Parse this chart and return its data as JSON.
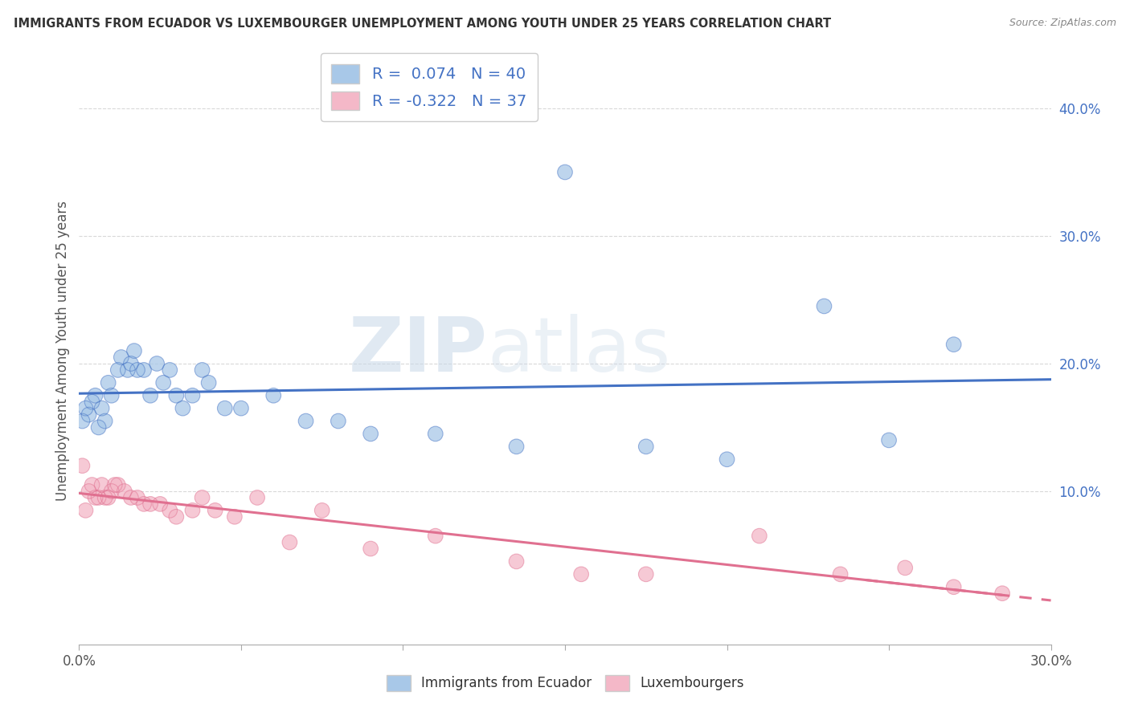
{
  "title": "IMMIGRANTS FROM ECUADOR VS LUXEMBOURGER UNEMPLOYMENT AMONG YOUTH UNDER 25 YEARS CORRELATION CHART",
  "source": "Source: ZipAtlas.com",
  "ylabel": "Unemployment Among Youth under 25 years",
  "legend_labels": [
    "Immigrants from Ecuador",
    "Luxembourgers"
  ],
  "R_blue": 0.074,
  "N_blue": 40,
  "R_pink": -0.322,
  "N_pink": 37,
  "color_blue": "#a8c8e8",
  "color_pink": "#f4b8c8",
  "color_blue_fill": "#aec6e8",
  "color_pink_fill": "#f4b8c8",
  "color_blue_line": "#4472c4",
  "color_pink_line": "#e07090",
  "xlim": [
    0.0,
    0.3
  ],
  "ylim": [
    -0.02,
    0.44
  ],
  "xticks": [
    0.0,
    0.05,
    0.1,
    0.15,
    0.2,
    0.25,
    0.3
  ],
  "xtick_labels": [
    "0.0%",
    "",
    "",
    "",
    "",
    "",
    "30.0%"
  ],
  "ytick_right_labels": [
    "",
    "10.0%",
    "20.0%",
    "30.0%",
    "40.0%"
  ],
  "ytick_right_values": [
    0.0,
    0.1,
    0.2,
    0.3,
    0.4
  ],
  "blue_scatter_x": [
    0.001,
    0.002,
    0.003,
    0.004,
    0.005,
    0.006,
    0.007,
    0.008,
    0.009,
    0.01,
    0.012,
    0.013,
    0.015,
    0.016,
    0.017,
    0.018,
    0.02,
    0.022,
    0.024,
    0.026,
    0.028,
    0.03,
    0.032,
    0.035,
    0.038,
    0.04,
    0.045,
    0.05,
    0.06,
    0.07,
    0.08,
    0.09,
    0.11,
    0.135,
    0.15,
    0.175,
    0.2,
    0.23,
    0.25,
    0.27
  ],
  "blue_scatter_y": [
    0.155,
    0.165,
    0.16,
    0.17,
    0.175,
    0.15,
    0.165,
    0.155,
    0.185,
    0.175,
    0.195,
    0.205,
    0.195,
    0.2,
    0.21,
    0.195,
    0.195,
    0.175,
    0.2,
    0.185,
    0.195,
    0.175,
    0.165,
    0.175,
    0.195,
    0.185,
    0.165,
    0.165,
    0.175,
    0.155,
    0.155,
    0.145,
    0.145,
    0.135,
    0.35,
    0.135,
    0.125,
    0.245,
    0.14,
    0.215
  ],
  "pink_scatter_x": [
    0.001,
    0.002,
    0.003,
    0.004,
    0.005,
    0.006,
    0.007,
    0.008,
    0.009,
    0.01,
    0.011,
    0.012,
    0.014,
    0.016,
    0.018,
    0.02,
    0.022,
    0.025,
    0.028,
    0.03,
    0.035,
    0.038,
    0.042,
    0.048,
    0.055,
    0.065,
    0.075,
    0.09,
    0.11,
    0.135,
    0.155,
    0.175,
    0.21,
    0.235,
    0.255,
    0.27,
    0.285
  ],
  "pink_scatter_y": [
    0.12,
    0.085,
    0.1,
    0.105,
    0.095,
    0.095,
    0.105,
    0.095,
    0.095,
    0.1,
    0.105,
    0.105,
    0.1,
    0.095,
    0.095,
    0.09,
    0.09,
    0.09,
    0.085,
    0.08,
    0.085,
    0.095,
    0.085,
    0.08,
    0.095,
    0.06,
    0.085,
    0.055,
    0.065,
    0.045,
    0.035,
    0.035,
    0.065,
    0.035,
    0.04,
    0.025,
    0.02
  ],
  "watermark_zip": "ZIP",
  "watermark_atlas": "atlas",
  "background_color": "#ffffff",
  "grid_color": "#d0d0d0",
  "title_color": "#333333",
  "source_color": "#888888",
  "ylabel_color": "#555555",
  "tick_color": "#555555",
  "right_tick_color": "#4472c4",
  "legend_label_color": "#4472c4"
}
